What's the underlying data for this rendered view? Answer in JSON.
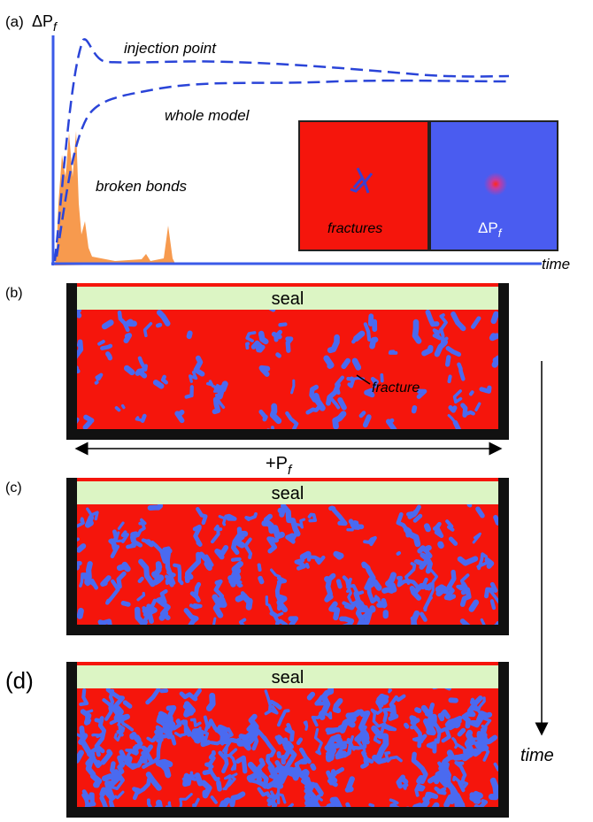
{
  "panel_a": {
    "label": "(a)",
    "y_axis_label": {
      "text": "ΔP",
      "sub": "f"
    },
    "curve_labels": [
      "injection point",
      "whole model"
    ],
    "histogram_label": "broken bonds",
    "x_axis_label": "time",
    "insets": [
      {
        "label": "fractures"
      },
      {
        "label": {
          "text": "ΔP",
          "sub": "f"
        }
      }
    ]
  },
  "panel_b": {
    "label": "(b)",
    "seal": "seal",
    "annotation": "fracture",
    "pressure_label": {
      "text": "+P",
      "sub": "f"
    }
  },
  "panel_c": {
    "label": "(c)",
    "seal": "seal"
  },
  "panel_d": {
    "label": "(d)",
    "seal": "seal"
  },
  "time_arrow_label": "time"
}
